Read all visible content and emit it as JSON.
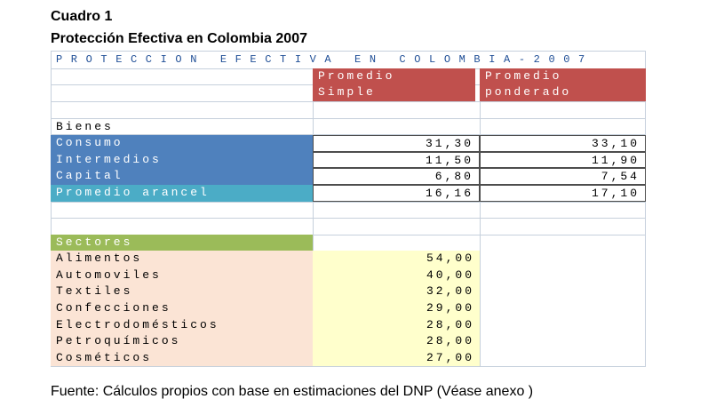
{
  "caption": {
    "line1": "Cuadro 1",
    "line2": "Protección Efectiva en Colombia 2007"
  },
  "table": {
    "title": "PROTECCION EFECTIVA EN COLOMBIA-2007",
    "col_headers": {
      "simple": [
        "Promedio",
        "Simple"
      ],
      "ponderado": [
        "Promedio",
        "ponderado"
      ]
    },
    "bienes": {
      "label": "Bienes",
      "rows": [
        {
          "name": "Consumo",
          "simple": "31,30",
          "ponderado": "33,10"
        },
        {
          "name": "Intermedios",
          "simple": "11,50",
          "ponderado": "11,90"
        },
        {
          "name": "Capital",
          "simple": "6,80",
          "ponderado": "7,54"
        },
        {
          "name": "Promedio arancel",
          "simple": "16,16",
          "ponderado": "17,10"
        }
      ]
    },
    "sectores": {
      "label": "Sectores",
      "rows": [
        {
          "name": "Alimentos",
          "simple": "54,00"
        },
        {
          "name": "Automoviles",
          "simple": "40,00"
        },
        {
          "name": "Textiles",
          "simple": "32,00"
        },
        {
          "name": "Confecciones",
          "simple": "29,00"
        },
        {
          "name": "Electrodomésticos",
          "simple": "28,00"
        },
        {
          "name": "Petroquímicos",
          "simple": "28,00"
        },
        {
          "name": "Cosméticos",
          "simple": "27,00"
        }
      ]
    }
  },
  "source": "Fuente: Cálculos propios con base en estimaciones del DNP (Véase anexo )"
}
